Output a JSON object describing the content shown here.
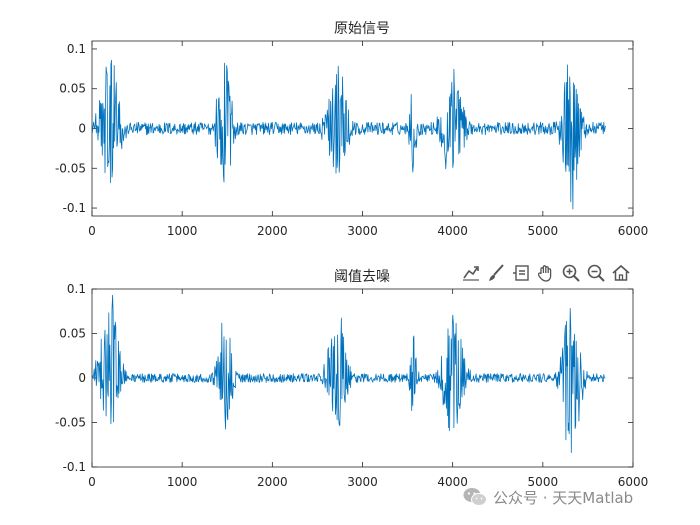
{
  "chart_data": [
    {
      "type": "line",
      "title": "原始信号",
      "xlabel": "",
      "ylabel": "",
      "xlim": [
        0,
        6000
      ],
      "ylim": [
        -0.11,
        0.11
      ],
      "xticks": [
        0,
        1000,
        2000,
        3000,
        4000,
        5000,
        6000
      ],
      "yticks": [
        -0.1,
        -0.05,
        0,
        0.05,
        0.1
      ],
      "ytick_labels": [
        "-0.1",
        "-0.05",
        "0",
        "0.05",
        "0.1"
      ],
      "grid": false,
      "line_color": "#0072BD",
      "series": [
        {
          "n_samples": 5700,
          "bursts": [
            {
              "center": 200,
              "width": 170,
              "peak_max": 0.108,
              "peak_min": -0.07
            },
            {
              "center": 1470,
              "width": 130,
              "peak_max": 0.09,
              "peak_min": -0.07
            },
            {
              "center": 2720,
              "width": 160,
              "peak_max": 0.09,
              "peak_min": -0.075
            },
            {
              "center": 3560,
              "width": 60,
              "peak_max": 0.06,
              "peak_min": -0.06
            },
            {
              "center": 4000,
              "width": 170,
              "peak_max": 0.085,
              "peak_min": -0.07
            },
            {
              "center": 5320,
              "width": 160,
              "peak_max": 0.09,
              "peak_min": -0.11
            }
          ],
          "noise_level": 0.008
        }
      ]
    },
    {
      "type": "line",
      "title": "阈值去噪",
      "xlabel": "",
      "ylabel": "",
      "xlim": [
        0,
        6000
      ],
      "ylim": [
        -0.1,
        0.1
      ],
      "xticks": [
        0,
        1000,
        2000,
        3000,
        4000,
        5000,
        6000
      ],
      "yticks": [
        -0.1,
        -0.05,
        0,
        0.05,
        0.1
      ],
      "ytick_labels": [
        "-0.1",
        "-0.05",
        "0",
        "0.05",
        "0.1"
      ],
      "grid": false,
      "line_color": "#0072BD",
      "series": [
        {
          "n_samples": 5700,
          "bursts": [
            {
              "center": 200,
              "width": 170,
              "peak_max": 0.1,
              "peak_min": -0.055
            },
            {
              "center": 1470,
              "width": 130,
              "peak_max": 0.08,
              "peak_min": -0.065
            },
            {
              "center": 2720,
              "width": 160,
              "peak_max": 0.08,
              "peak_min": -0.06
            },
            {
              "center": 3560,
              "width": 60,
              "peak_max": 0.055,
              "peak_min": -0.048
            },
            {
              "center": 4000,
              "width": 170,
              "peak_max": 0.08,
              "peak_min": -0.065
            },
            {
              "center": 5320,
              "width": 160,
              "peak_max": 0.09,
              "peak_min": -0.095
            }
          ],
          "noise_level": 0.005
        }
      ]
    }
  ],
  "toolbar": {
    "icons": [
      "export-icon",
      "brush-icon",
      "data-tips-icon",
      "pan-hand-icon",
      "zoom-in-icon",
      "zoom-out-icon",
      "home-icon"
    ]
  },
  "watermark": {
    "text": "公众号 · 天天Matlab",
    "icon": "wechat-logo-icon"
  }
}
